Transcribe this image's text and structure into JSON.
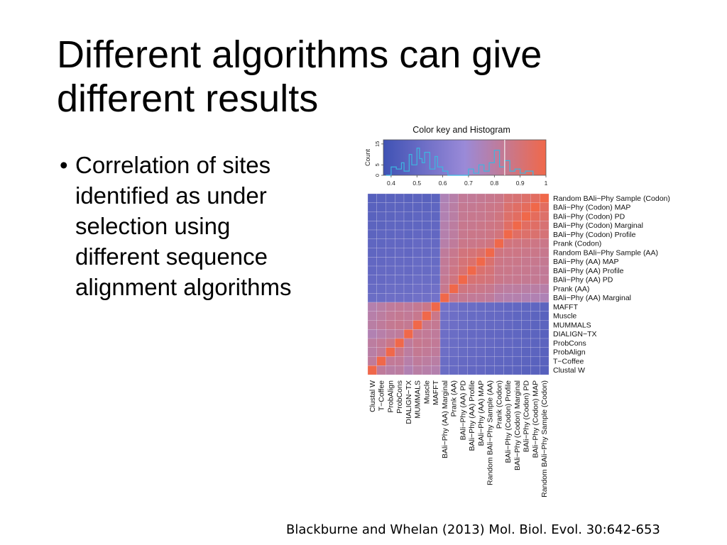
{
  "slide": {
    "title": "Different algorithms can give different results",
    "bullet_marker": "•",
    "bullet": "Correlation of sites identified as under selection using different sequence alignment algorithms",
    "citation": "Blackburne and Whelan (2013) Mol. Biol. Evol. 30:642-653"
  },
  "colors": {
    "low": "#3f52b4",
    "mid": "#9a8ad8",
    "high": "#f0684a",
    "histogram_line": "#3db6e0",
    "grid": "#e6e0f0"
  },
  "chart_data": {
    "type": "heatmap",
    "color_key": {
      "title": "Color key and Histogram",
      "ylabel": "Count",
      "y_ticks": [
        "0",
        "5",
        "15"
      ],
      "ylim": [
        0,
        17
      ],
      "x_ticks": [
        "0.4",
        "0.5",
        "0.6",
        "0.7",
        "0.8",
        "0.9",
        "1"
      ],
      "xlim": [
        0.37,
        1.0
      ],
      "reference_line": 0.84,
      "histogram": [
        [
          0.38,
          0
        ],
        [
          0.4,
          4
        ],
        [
          0.42,
          3
        ],
        [
          0.44,
          6
        ],
        [
          0.45,
          2
        ],
        [
          0.47,
          10
        ],
        [
          0.48,
          5
        ],
        [
          0.5,
          13
        ],
        [
          0.51,
          8
        ],
        [
          0.52,
          6
        ],
        [
          0.53,
          11
        ],
        [
          0.55,
          3
        ],
        [
          0.57,
          9
        ],
        [
          0.58,
          4
        ],
        [
          0.6,
          2
        ],
        [
          0.62,
          0
        ],
        [
          0.67,
          0
        ],
        [
          0.7,
          3
        ],
        [
          0.72,
          1
        ],
        [
          0.74,
          5
        ],
        [
          0.76,
          2
        ],
        [
          0.78,
          6
        ],
        [
          0.8,
          12
        ],
        [
          0.82,
          4
        ],
        [
          0.84,
          7
        ],
        [
          0.86,
          2
        ],
        [
          0.88,
          3
        ],
        [
          0.9,
          1
        ],
        [
          0.92,
          2
        ],
        [
          0.95,
          0
        ]
      ]
    },
    "rows": [
      "Random BAli−Phy Sample (Codon)",
      "BAli−Phy (Codon) MAP",
      "BAli−Phy (Codon) PD",
      "BAli−Phy (Codon) Marginal",
      "BAli−Phy (Codon) Profile",
      "Prank (Codon)",
      "Random BAli−Phy Sample (AA)",
      "BAli−Phy (AA) MAP",
      "BAli−Phy (AA) Profile",
      "BAli−Phy (AA) PD",
      "Prank (AA)",
      "BAli−Phy (AA) Marginal",
      "MAFFT",
      "Muscle",
      "MUMMALS",
      "DIALIGN−TX",
      "ProbCons",
      "ProbAlign",
      "T−Coffee",
      "Clustal W"
    ],
    "columns": [
      "Clustal W",
      "T−Coffee",
      "ProbAlign",
      "ProbCons",
      "DIALIGN−TX",
      "MUMMALS",
      "Muscle",
      "MAFFT",
      "BAli−Phy (AA) Marginal",
      "Prank (AA)",
      "BAli−Phy (AA) PD",
      "BAli−Phy (AA) Profile",
      "BAli−Phy (AA) MAP",
      "Random BAli−Phy Sample (AA)",
      "Prank (Codon)",
      "BAli−Phy (Codon) Profile",
      "BAli−Phy (Codon) Marginal",
      "BAli−Phy (Codon) PD",
      "BAli−Phy (Codon) MAP",
      "Random BAli−Phy Sample (Codon)"
    ],
    "values": [
      [
        0.45,
        0.46,
        0.46,
        0.47,
        0.46,
        0.47,
        0.46,
        0.47,
        0.76,
        0.79,
        0.83,
        0.83,
        0.84,
        0.85,
        0.86,
        0.9,
        0.91,
        0.93,
        0.95,
        1.0
      ],
      [
        0.46,
        0.46,
        0.47,
        0.47,
        0.47,
        0.47,
        0.47,
        0.48,
        0.77,
        0.8,
        0.84,
        0.84,
        0.85,
        0.86,
        0.87,
        0.92,
        0.94,
        0.96,
        1.0,
        0.95
      ],
      [
        0.46,
        0.47,
        0.47,
        0.48,
        0.47,
        0.48,
        0.48,
        0.48,
        0.77,
        0.8,
        0.84,
        0.85,
        0.85,
        0.86,
        0.88,
        0.93,
        0.95,
        1.0,
        0.96,
        0.93
      ],
      [
        0.47,
        0.47,
        0.48,
        0.48,
        0.48,
        0.48,
        0.48,
        0.49,
        0.78,
        0.81,
        0.85,
        0.85,
        0.86,
        0.87,
        0.88,
        0.94,
        1.0,
        0.95,
        0.94,
        0.91
      ],
      [
        0.47,
        0.48,
        0.48,
        0.49,
        0.48,
        0.49,
        0.49,
        0.49,
        0.78,
        0.81,
        0.85,
        0.86,
        0.86,
        0.87,
        0.89,
        1.0,
        0.94,
        0.93,
        0.92,
        0.9
      ],
      [
        0.48,
        0.48,
        0.49,
        0.49,
        0.49,
        0.5,
        0.5,
        0.5,
        0.79,
        0.82,
        0.86,
        0.86,
        0.87,
        0.88,
        1.0,
        0.89,
        0.88,
        0.88,
        0.87,
        0.86
      ],
      [
        0.48,
        0.49,
        0.49,
        0.5,
        0.49,
        0.5,
        0.5,
        0.51,
        0.82,
        0.85,
        0.89,
        0.9,
        0.92,
        1.0,
        0.88,
        0.87,
        0.87,
        0.86,
        0.86,
        0.85
      ],
      [
        0.49,
        0.49,
        0.5,
        0.5,
        0.5,
        0.51,
        0.51,
        0.51,
        0.83,
        0.86,
        0.9,
        0.92,
        1.0,
        0.92,
        0.87,
        0.86,
        0.86,
        0.85,
        0.85,
        0.84
      ],
      [
        0.49,
        0.5,
        0.5,
        0.51,
        0.5,
        0.51,
        0.51,
        0.52,
        0.83,
        0.87,
        0.91,
        1.0,
        0.92,
        0.9,
        0.86,
        0.86,
        0.85,
        0.85,
        0.84,
        0.83
      ],
      [
        0.5,
        0.5,
        0.51,
        0.51,
        0.51,
        0.52,
        0.52,
        0.52,
        0.84,
        0.88,
        1.0,
        0.91,
        0.9,
        0.89,
        0.86,
        0.85,
        0.85,
        0.84,
        0.84,
        0.83
      ],
      [
        0.51,
        0.51,
        0.52,
        0.52,
        0.52,
        0.53,
        0.53,
        0.54,
        0.85,
        1.0,
        0.88,
        0.87,
        0.86,
        0.85,
        0.82,
        0.81,
        0.81,
        0.8,
        0.8,
        0.79
      ],
      [
        0.52,
        0.52,
        0.53,
        0.53,
        0.53,
        0.54,
        0.54,
        0.55,
        1.0,
        0.85,
        0.84,
        0.83,
        0.83,
        0.82,
        0.79,
        0.78,
        0.78,
        0.77,
        0.77,
        0.76
      ],
      [
        0.78,
        0.8,
        0.82,
        0.83,
        0.82,
        0.84,
        0.86,
        1.0,
        0.55,
        0.54,
        0.52,
        0.52,
        0.51,
        0.51,
        0.5,
        0.49,
        0.49,
        0.48,
        0.48,
        0.47
      ],
      [
        0.79,
        0.81,
        0.83,
        0.84,
        0.83,
        0.85,
        1.0,
        0.86,
        0.54,
        0.53,
        0.52,
        0.51,
        0.51,
        0.5,
        0.5,
        0.49,
        0.48,
        0.48,
        0.47,
        0.46
      ],
      [
        0.8,
        0.82,
        0.84,
        0.85,
        0.84,
        1.0,
        0.85,
        0.84,
        0.54,
        0.53,
        0.52,
        0.51,
        0.51,
        0.5,
        0.5,
        0.49,
        0.48,
        0.48,
        0.47,
        0.47
      ],
      [
        0.77,
        0.79,
        0.81,
        0.82,
        1.0,
        0.84,
        0.83,
        0.82,
        0.53,
        0.52,
        0.51,
        0.5,
        0.5,
        0.49,
        0.49,
        0.48,
        0.48,
        0.47,
        0.47,
        0.46
      ],
      [
        0.81,
        0.83,
        0.86,
        1.0,
        0.82,
        0.85,
        0.84,
        0.83,
        0.53,
        0.52,
        0.51,
        0.51,
        0.5,
        0.5,
        0.49,
        0.49,
        0.48,
        0.48,
        0.47,
        0.47
      ],
      [
        0.8,
        0.83,
        1.0,
        0.86,
        0.81,
        0.84,
        0.83,
        0.82,
        0.53,
        0.52,
        0.51,
        0.5,
        0.5,
        0.49,
        0.49,
        0.48,
        0.48,
        0.47,
        0.47,
        0.46
      ],
      [
        0.82,
        1.0,
        0.83,
        0.83,
        0.79,
        0.82,
        0.81,
        0.8,
        0.52,
        0.51,
        0.5,
        0.5,
        0.49,
        0.49,
        0.48,
        0.48,
        0.47,
        0.47,
        0.46,
        0.46
      ],
      [
        1.0,
        0.82,
        0.8,
        0.81,
        0.77,
        0.8,
        0.79,
        0.78,
        0.52,
        0.51,
        0.5,
        0.49,
        0.49,
        0.48,
        0.48,
        0.47,
        0.47,
        0.46,
        0.46,
        0.45
      ]
    ]
  }
}
